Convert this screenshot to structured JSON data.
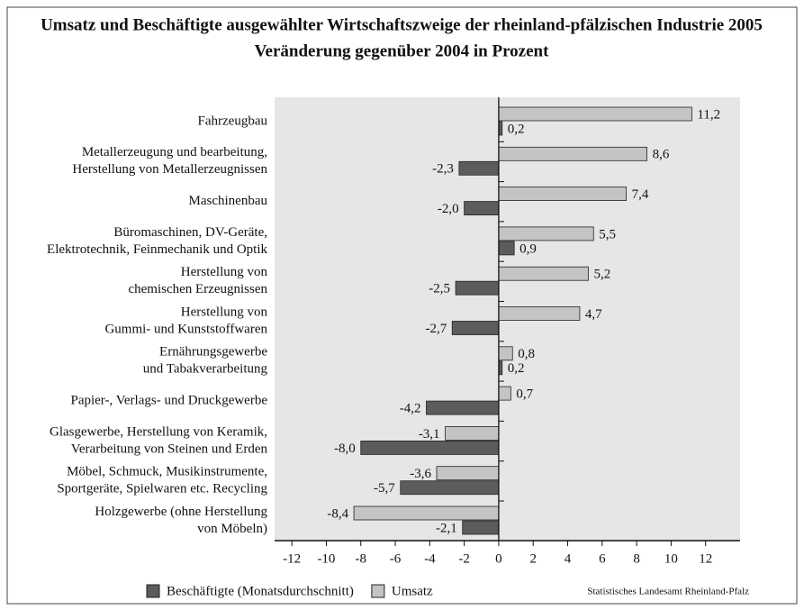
{
  "chart_data": {
    "type": "hbar",
    "title": "Umsatz und Beschäftigte ausgewählter Wirtschaftszweige der rheinland-pfälzischen Industrie 2005",
    "subtitle": "Veränderung gegenüber 2004 in Prozent",
    "categories": [
      [
        "Fahrzeugbau"
      ],
      [
        "Metallerzeugung und bearbeitung,",
        "Herstellung von Metallerzeugnissen"
      ],
      [
        "Maschinenbau"
      ],
      [
        "Büromaschinen, DV-Geräte,",
        "Elektrotechnik, Feinmechanik und Optik"
      ],
      [
        "Herstellung von",
        "chemischen Erzeugnissen"
      ],
      [
        "Herstellung von",
        "Gummi- und Kunststoffwaren"
      ],
      [
        "Ernährungsgewerbe",
        "und Tabakverarbeitung"
      ],
      [
        "Papier-, Verlags- und Druckgewerbe"
      ],
      [
        "Glasgewerbe, Herstellung von Keramik,",
        "Verarbeitung von Steinen und Erden"
      ],
      [
        "Möbel, Schmuck, Musikinstrumente,",
        "Sportgeräte, Spielwaren etc. Recycling"
      ],
      [
        "Holzgewerbe (ohne Herstellung",
        "von Möbeln)"
      ]
    ],
    "series": [
      {
        "name": "Beschäftigte (Monatsdurchschnitt)",
        "color": "#5c5c5c",
        "values": [
          0.2,
          -2.3,
          -2.0,
          0.9,
          -2.5,
          -2.7,
          0.2,
          -4.2,
          -8.0,
          -5.7,
          -2.1
        ],
        "value_labels": [
          "0,2",
          "-2,3",
          "-2,0",
          "0,9",
          "-2,5",
          "-2,7",
          "0,2",
          "-4,2",
          "-8,0",
          "-5,7",
          "-2,1"
        ]
      },
      {
        "name": "Umsatz",
        "color": "#c4c4c4",
        "values": [
          11.2,
          8.6,
          7.4,
          5.5,
          5.2,
          4.7,
          0.8,
          0.7,
          -3.1,
          -3.6,
          -8.4
        ],
        "value_labels": [
          "11,2",
          "8,6",
          "7,4",
          "5,5",
          "5,2",
          "4,7",
          "0,8",
          "0,7",
          "-3,1",
          "-3,6",
          "-8,4"
        ]
      }
    ],
    "xlim": [
      -13,
      14
    ],
    "xticks": [
      -12,
      -10,
      -8,
      -6,
      -4,
      -2,
      0,
      2,
      4,
      6,
      8,
      10,
      12
    ],
    "source": "Statistisches Landesamt Rheinland-Pfalz"
  }
}
